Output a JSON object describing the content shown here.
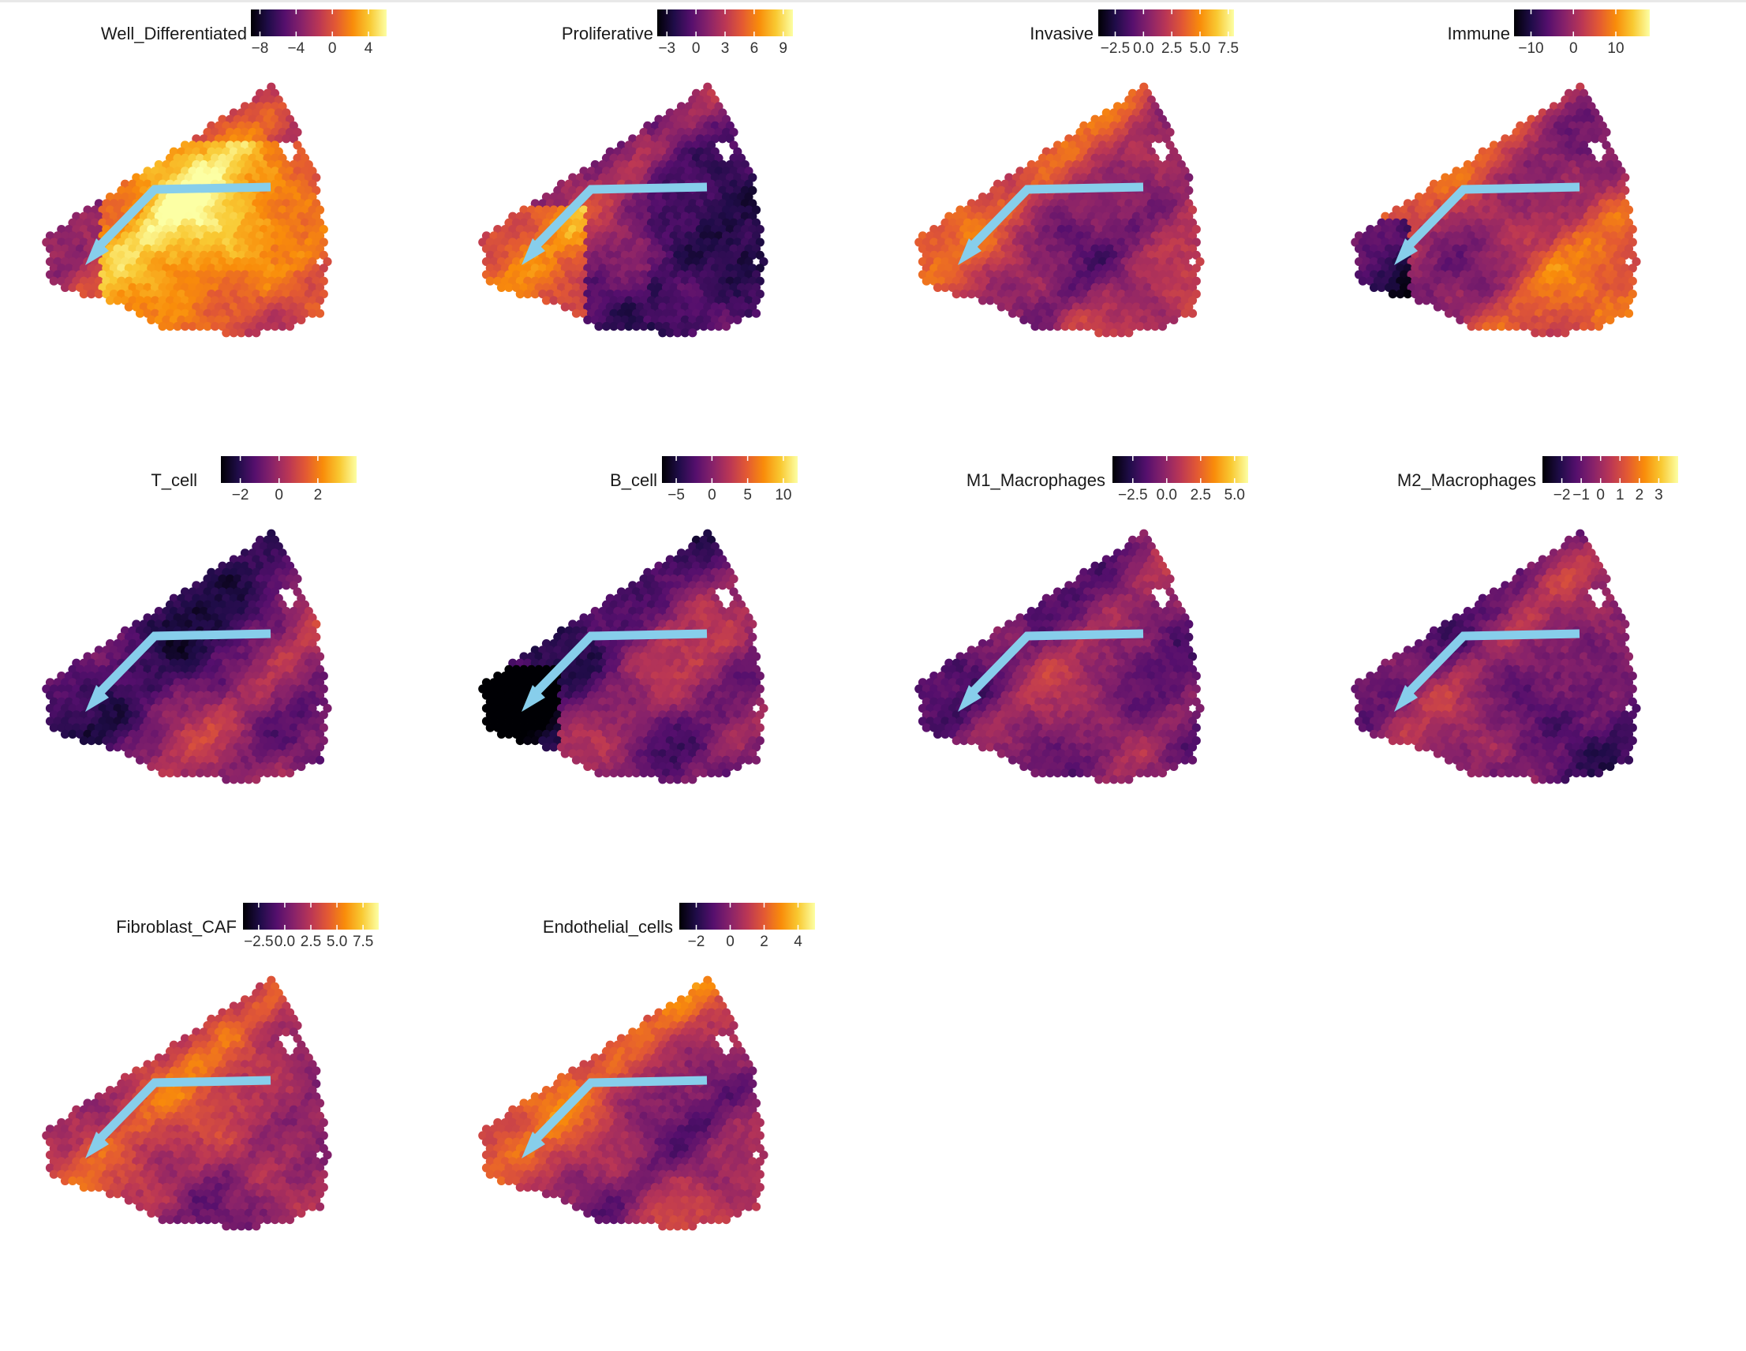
{
  "colormap": "inferno",
  "arrow_color": "#87ceeb",
  "chart_data": [
    {
      "type": "heatmap",
      "title": "Well_Differentiated",
      "legend_ticks": [
        -8,
        -4,
        0,
        4
      ],
      "range": [
        -9,
        6
      ],
      "dominant": "high"
    },
    {
      "type": "heatmap",
      "title": "Proliferative",
      "legend_ticks": [
        -3,
        0,
        3,
        6,
        9
      ],
      "range": [
        -4,
        10
      ],
      "dominant": "low"
    },
    {
      "type": "heatmap",
      "title": "Invasive",
      "legend_ticks": [
        -2.5,
        0.0,
        2.5,
        5.0,
        7.5
      ],
      "legend_tick_labels": [
        "−2.5",
        "0.0",
        "2.5",
        "5.0",
        "7.5"
      ],
      "range": [
        -4,
        8
      ],
      "dominant": "mid"
    },
    {
      "type": "heatmap",
      "title": "Immune",
      "legend_ticks": [
        -10,
        0,
        10
      ],
      "range": [
        -14,
        18
      ],
      "dominant": "mid-high"
    },
    {
      "type": "heatmap",
      "title": "T_cell",
      "legend_ticks": [
        -2,
        0,
        2
      ],
      "range": [
        -3,
        4
      ],
      "dominant": "low"
    },
    {
      "type": "heatmap",
      "title": "B_cell",
      "legend_ticks": [
        -5,
        0,
        5,
        10
      ],
      "range": [
        -7,
        12
      ],
      "dominant": "low"
    },
    {
      "type": "heatmap",
      "title": "M1_Macrophages",
      "legend_ticks": [
        -2.5,
        0.0,
        2.5,
        5.0
      ],
      "legend_tick_labels": [
        "−2.5",
        "0.0",
        "2.5",
        "5.0"
      ],
      "range": [
        -4,
        6
      ],
      "dominant": "low"
    },
    {
      "type": "heatmap",
      "title": "M2_Macrophages",
      "legend_ticks": [
        -2,
        -1,
        0,
        1,
        2,
        3
      ],
      "range": [
        -3,
        4
      ],
      "dominant": "low"
    },
    {
      "type": "heatmap",
      "title": "Fibroblast_CAF",
      "legend_ticks": [
        -2.5,
        0.0,
        2.5,
        5.0,
        7.5
      ],
      "legend_tick_labels": [
        "−2.5",
        "0.0",
        "2.5",
        "5.0",
        "7.5"
      ],
      "range": [
        -4,
        9
      ],
      "dominant": "mid"
    },
    {
      "type": "heatmap",
      "title": "Endothelial_cells",
      "legend_ticks": [
        -2,
        0,
        2,
        4
      ],
      "range": [
        -3,
        5
      ],
      "dominant": "mid"
    }
  ]
}
